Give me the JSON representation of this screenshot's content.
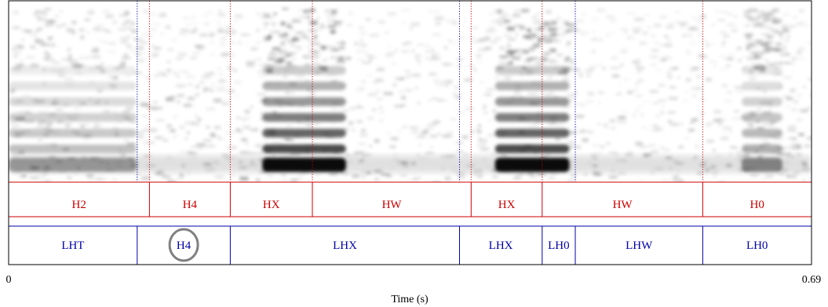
{
  "duration_s": 0.69,
  "axis": {
    "start_label": "0",
    "end_label": "0.69",
    "label": "Time (s)"
  },
  "colors": {
    "tier1": "#cc0000",
    "tier2": "#0000aa",
    "frame": "#000000",
    "circle": "#808080",
    "spectrogram": "#000000"
  },
  "spectrogram_boundaries": [
    {
      "t": 0.1105,
      "tier": "tier2"
    },
    {
      "t": 0.121,
      "tier": "tier1"
    },
    {
      "t": 0.1905,
      "tier": "tier1"
    },
    {
      "t": 0.261,
      "tier": "tier1"
    },
    {
      "t": 0.3875,
      "tier": "tier2"
    },
    {
      "t": 0.3975,
      "tier": "tier1"
    },
    {
      "t": 0.4585,
      "tier": "tier1"
    },
    {
      "t": 0.487,
      "tier": "tier2"
    },
    {
      "t": 0.5965,
      "tier": "tier1"
    }
  ],
  "tiers": [
    {
      "id": "tier1",
      "intervals": [
        {
          "label": "H2",
          "start": 0.0,
          "end": 0.121
        },
        {
          "label": "H4",
          "start": 0.121,
          "end": 0.1905
        },
        {
          "label": "HX",
          "start": 0.1905,
          "end": 0.261
        },
        {
          "label": "HW",
          "start": 0.261,
          "end": 0.3975
        },
        {
          "label": "HX",
          "start": 0.3975,
          "end": 0.4585
        },
        {
          "label": "HW",
          "start": 0.4585,
          "end": 0.5965
        },
        {
          "label": "H0",
          "start": 0.5965,
          "end": 0.69
        }
      ]
    },
    {
      "id": "tier2",
      "intervals": [
        {
          "label": "LHT",
          "start": 0.0,
          "end": 0.1105
        },
        {
          "label": "H4",
          "start": 0.1105,
          "end": 0.1905,
          "circled": true
        },
        {
          "label": "LHX",
          "start": 0.1905,
          "end": 0.3875
        },
        {
          "label": "LHX",
          "start": 0.3875,
          "end": 0.4585
        },
        {
          "label": "LH0",
          "start": 0.4585,
          "end": 0.487
        },
        {
          "label": "LHW",
          "start": 0.487,
          "end": 0.5965
        },
        {
          "label": "LH0",
          "start": 0.5965,
          "end": 0.69
        }
      ]
    }
  ],
  "voiced_regions": [
    {
      "start": 0.218,
      "end": 0.29,
      "strength": 1.0
    },
    {
      "start": 0.418,
      "end": 0.482,
      "strength": 1.0
    },
    {
      "start": 0.0,
      "end": 0.11,
      "strength": 0.35
    },
    {
      "start": 0.63,
      "end": 0.665,
      "strength": 0.45
    }
  ]
}
